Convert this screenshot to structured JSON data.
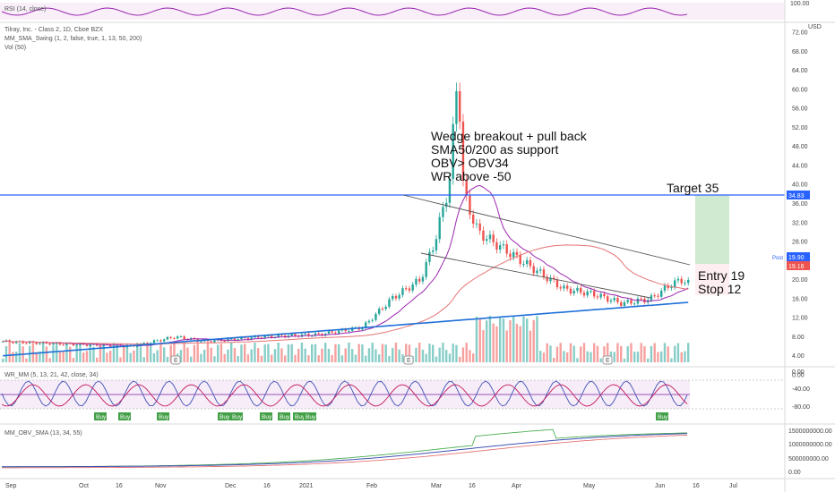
{
  "chart_data": {
    "type": "candlestick",
    "symbol_title": "Tilray, Inc. - Class 2, 1D, Cboe BZX",
    "indicator_labels": {
      "rsi": "RSI (14, close)",
      "mm_sma": "MM_SMA_Swing (1, 2, false, true, 1, 13, 50, 200)",
      "vol": "Vol (50)",
      "wr": "WR_MM (5, 13, 21, 42, close, 34)",
      "obv": "MM_OBV_SMA (13, 34, 55)"
    },
    "currency": "USD",
    "price_axis_ticks": [
      "72.00",
      "68.00",
      "64.00",
      "60.00",
      "56.00",
      "52.00",
      "48.00",
      "44.00",
      "40.00",
      "36.00",
      "32.00",
      "28.00",
      "24.00",
      "20.00",
      "16.00",
      "12.00",
      "8.00",
      "4.00",
      "0.00"
    ],
    "ylim": [
      0,
      72
    ],
    "rsi_axis_ticks": [
      "100.00"
    ],
    "wr_axis_ticks": [
      "0.00",
      "-40.00",
      "-80.00"
    ],
    "obv_axis_ticks": [
      "1500000000.00",
      "1000000000.00",
      "500000000.00",
      "0.00"
    ],
    "x_axis_ticks": [
      "Sep",
      "Oct",
      "16",
      "Nov",
      "Dec",
      "16",
      "2021",
      "Feb",
      "Mar",
      "16",
      "Apr",
      "May",
      "Jun",
      "16",
      "Jul"
    ],
    "price_tags": {
      "line": "34.83",
      "post_label": "Post",
      "post": "19.90",
      "last": "19.16"
    },
    "annotations": {
      "notes": [
        "Wedge breakout + pull back",
        "SMA50/200 as support",
        "OBV> OBV34",
        "WR above -50"
      ],
      "target": "Target 35",
      "entry": "Entry 19",
      "stop": "Stop 12"
    },
    "earnings_marker": "E",
    "buy_label": "Buy",
    "horizontal_level": 34.83,
    "colors": {
      "up": "#26a69a",
      "down": "#ef5350",
      "sma200": "#1e6fd9",
      "sma13": "#9c27b0",
      "sma50": "#e57373",
      "rsi": "#9c27b0",
      "target_zone": "#c8e6c9",
      "level": "#2962ff"
    }
  }
}
